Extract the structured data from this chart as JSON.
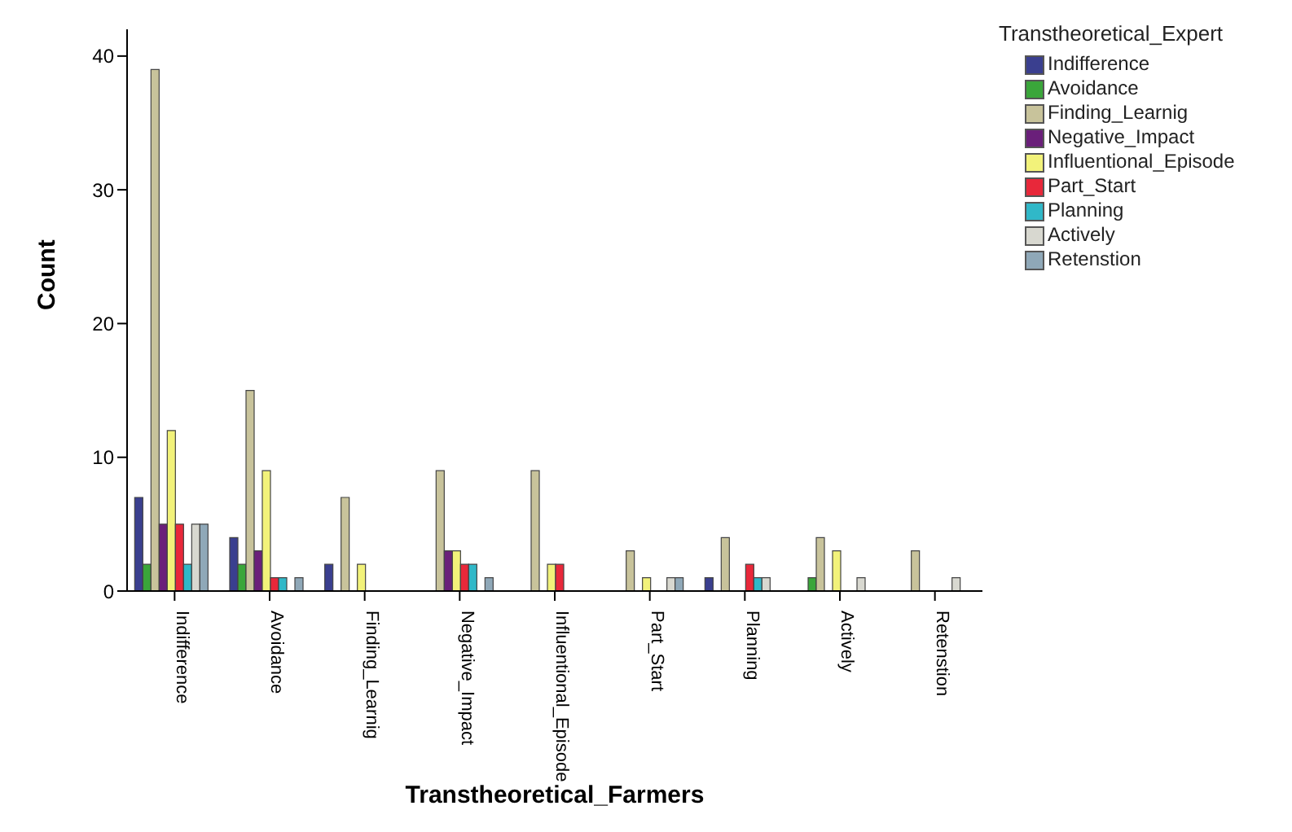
{
  "chart_data": {
    "type": "bar",
    "xlabel": "Transtheoretical_Farmers",
    "ylabel": "Count",
    "legend_title": "Transtheoretical_Expert",
    "categories": [
      "Indifference",
      "Avoidance",
      "Finding_Learnig",
      "Negative_Impact",
      "Influentional_Episode",
      "Part_Start",
      "Planning",
      "Actively",
      "Retenstion"
    ],
    "series": [
      {
        "name": "Indifference",
        "color": "#3a3f8f",
        "values": [
          7,
          4,
          2,
          0,
          0,
          0,
          1,
          0,
          0
        ]
      },
      {
        "name": "Avoidance",
        "color": "#3aa63a",
        "values": [
          2,
          2,
          0,
          0,
          0,
          0,
          0,
          1,
          0
        ]
      },
      {
        "name": "Finding_Learnig",
        "color": "#c8c39b",
        "values": [
          39,
          15,
          7,
          9,
          9,
          3,
          4,
          4,
          3
        ]
      },
      {
        "name": "Negative_Impact",
        "color": "#6a1f7a",
        "values": [
          5,
          3,
          0,
          3,
          0,
          0,
          0,
          0,
          0
        ]
      },
      {
        "name": "Influentional_Episode",
        "color": "#f2f27a",
        "values": [
          12,
          9,
          2,
          3,
          2,
          1,
          0,
          3,
          0
        ]
      },
      {
        "name": "Part_Start",
        "color": "#e8283a",
        "values": [
          5,
          1,
          0,
          2,
          2,
          0,
          2,
          0,
          0
        ]
      },
      {
        "name": "Planning",
        "color": "#30b8c8",
        "values": [
          2,
          1,
          0,
          2,
          0,
          0,
          1,
          0,
          0
        ]
      },
      {
        "name": "Actively",
        "color": "#d8d8d0",
        "values": [
          5,
          0,
          0,
          0,
          0,
          1,
          1,
          1,
          1
        ]
      },
      {
        "name": "Retenstion",
        "color": "#8fa8b8",
        "values": [
          5,
          1,
          0,
          1,
          0,
          1,
          0,
          0,
          0
        ]
      }
    ],
    "ylim": [
      0,
      42
    ],
    "yticks": [
      0,
      10,
      20,
      30,
      40
    ],
    "grid": false,
    "legend": "top right"
  }
}
